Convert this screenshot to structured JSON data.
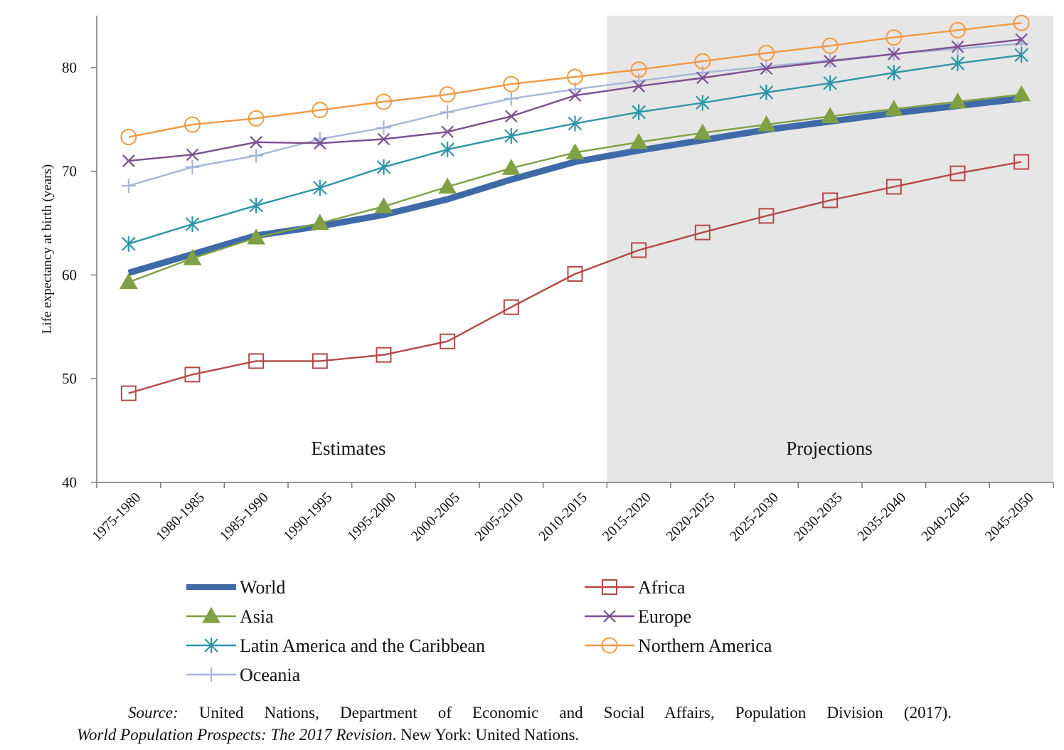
{
  "chart_data": {
    "type": "line",
    "title": "",
    "ylabel": "Life expectancy at birth (years)",
    "xlabel": "",
    "ylim": [
      40,
      85
    ],
    "yticks": [
      40,
      50,
      60,
      70,
      80
    ],
    "grid": false,
    "legend_position": "bottom",
    "categories": [
      "1975-1980",
      "1980-1985",
      "1985-1990",
      "1990-1995",
      "1995-2000",
      "2000-2005",
      "2005-2010",
      "2010-2015",
      "2015-2020",
      "2020-2025",
      "2025-2030",
      "2030-2035",
      "2035-2040",
      "2040-2045",
      "2045-2050"
    ],
    "regions": {
      "estimates": {
        "label": "Estimates",
        "range": [
          "1975-1980",
          "2010-2015"
        ]
      },
      "projections": {
        "label": "Projections",
        "range": [
          "2015-2020",
          "2045-2050"
        ],
        "shading": "#e6e6e6"
      }
    },
    "series": [
      {
        "name": "World",
        "color": "#3f6aa8",
        "marker": "none",
        "values": [
          60.2,
          62.0,
          63.8,
          64.7,
          65.8,
          67.3,
          69.2,
          70.9,
          72.0,
          73.0,
          74.0,
          74.8,
          75.6,
          76.3,
          77.0
        ]
      },
      {
        "name": "Africa",
        "color": "#b54848",
        "marker": "square",
        "values": [
          48.6,
          50.4,
          51.7,
          51.7,
          52.3,
          53.6,
          56.9,
          60.1,
          62.4,
          64.1,
          65.7,
          67.2,
          68.5,
          69.8,
          70.9
        ]
      },
      {
        "name": "Asia",
        "color": "#7fa043",
        "marker": "triangle",
        "values": [
          59.3,
          61.6,
          63.6,
          65.0,
          66.6,
          68.5,
          70.3,
          71.8,
          72.8,
          73.7,
          74.5,
          75.3,
          76.0,
          76.7,
          77.4
        ]
      },
      {
        "name": "Europe",
        "color": "#7a4f8f",
        "marker": "x",
        "values": [
          71.0,
          71.6,
          72.8,
          72.7,
          73.1,
          73.8,
          75.3,
          77.3,
          78.2,
          79.0,
          79.9,
          80.6,
          81.3,
          82.0,
          82.7
        ]
      },
      {
        "name": "Latin America and the Caribbean",
        "color": "#2f95a6",
        "marker": "star",
        "values": [
          63.0,
          64.9,
          66.7,
          68.4,
          70.4,
          72.1,
          73.4,
          74.6,
          75.7,
          76.6,
          77.6,
          78.5,
          79.5,
          80.4,
          81.2
        ]
      },
      {
        "name": "Northern America",
        "color": "#ef9a45",
        "marker": "circle",
        "values": [
          73.3,
          74.5,
          75.1,
          75.9,
          76.7,
          77.4,
          78.4,
          79.1,
          79.8,
          80.6,
          81.4,
          82.1,
          82.9,
          83.6,
          84.3
        ]
      },
      {
        "name": "Oceania",
        "color": "#a6b6d8",
        "marker": "plus",
        "values": [
          68.6,
          70.4,
          71.5,
          73.1,
          74.2,
          75.7,
          77.0,
          77.9,
          78.7,
          79.5,
          80.1,
          80.7,
          81.3,
          81.8,
          82.3
        ]
      }
    ]
  },
  "source": {
    "label": "Source:",
    "line1_text": "United Nations, Department of Economic and Social Affairs, Population Division (2017).",
    "title": "World Population Prospects: The 2017 Revision",
    "line2_text": ". New York: United Nations."
  }
}
